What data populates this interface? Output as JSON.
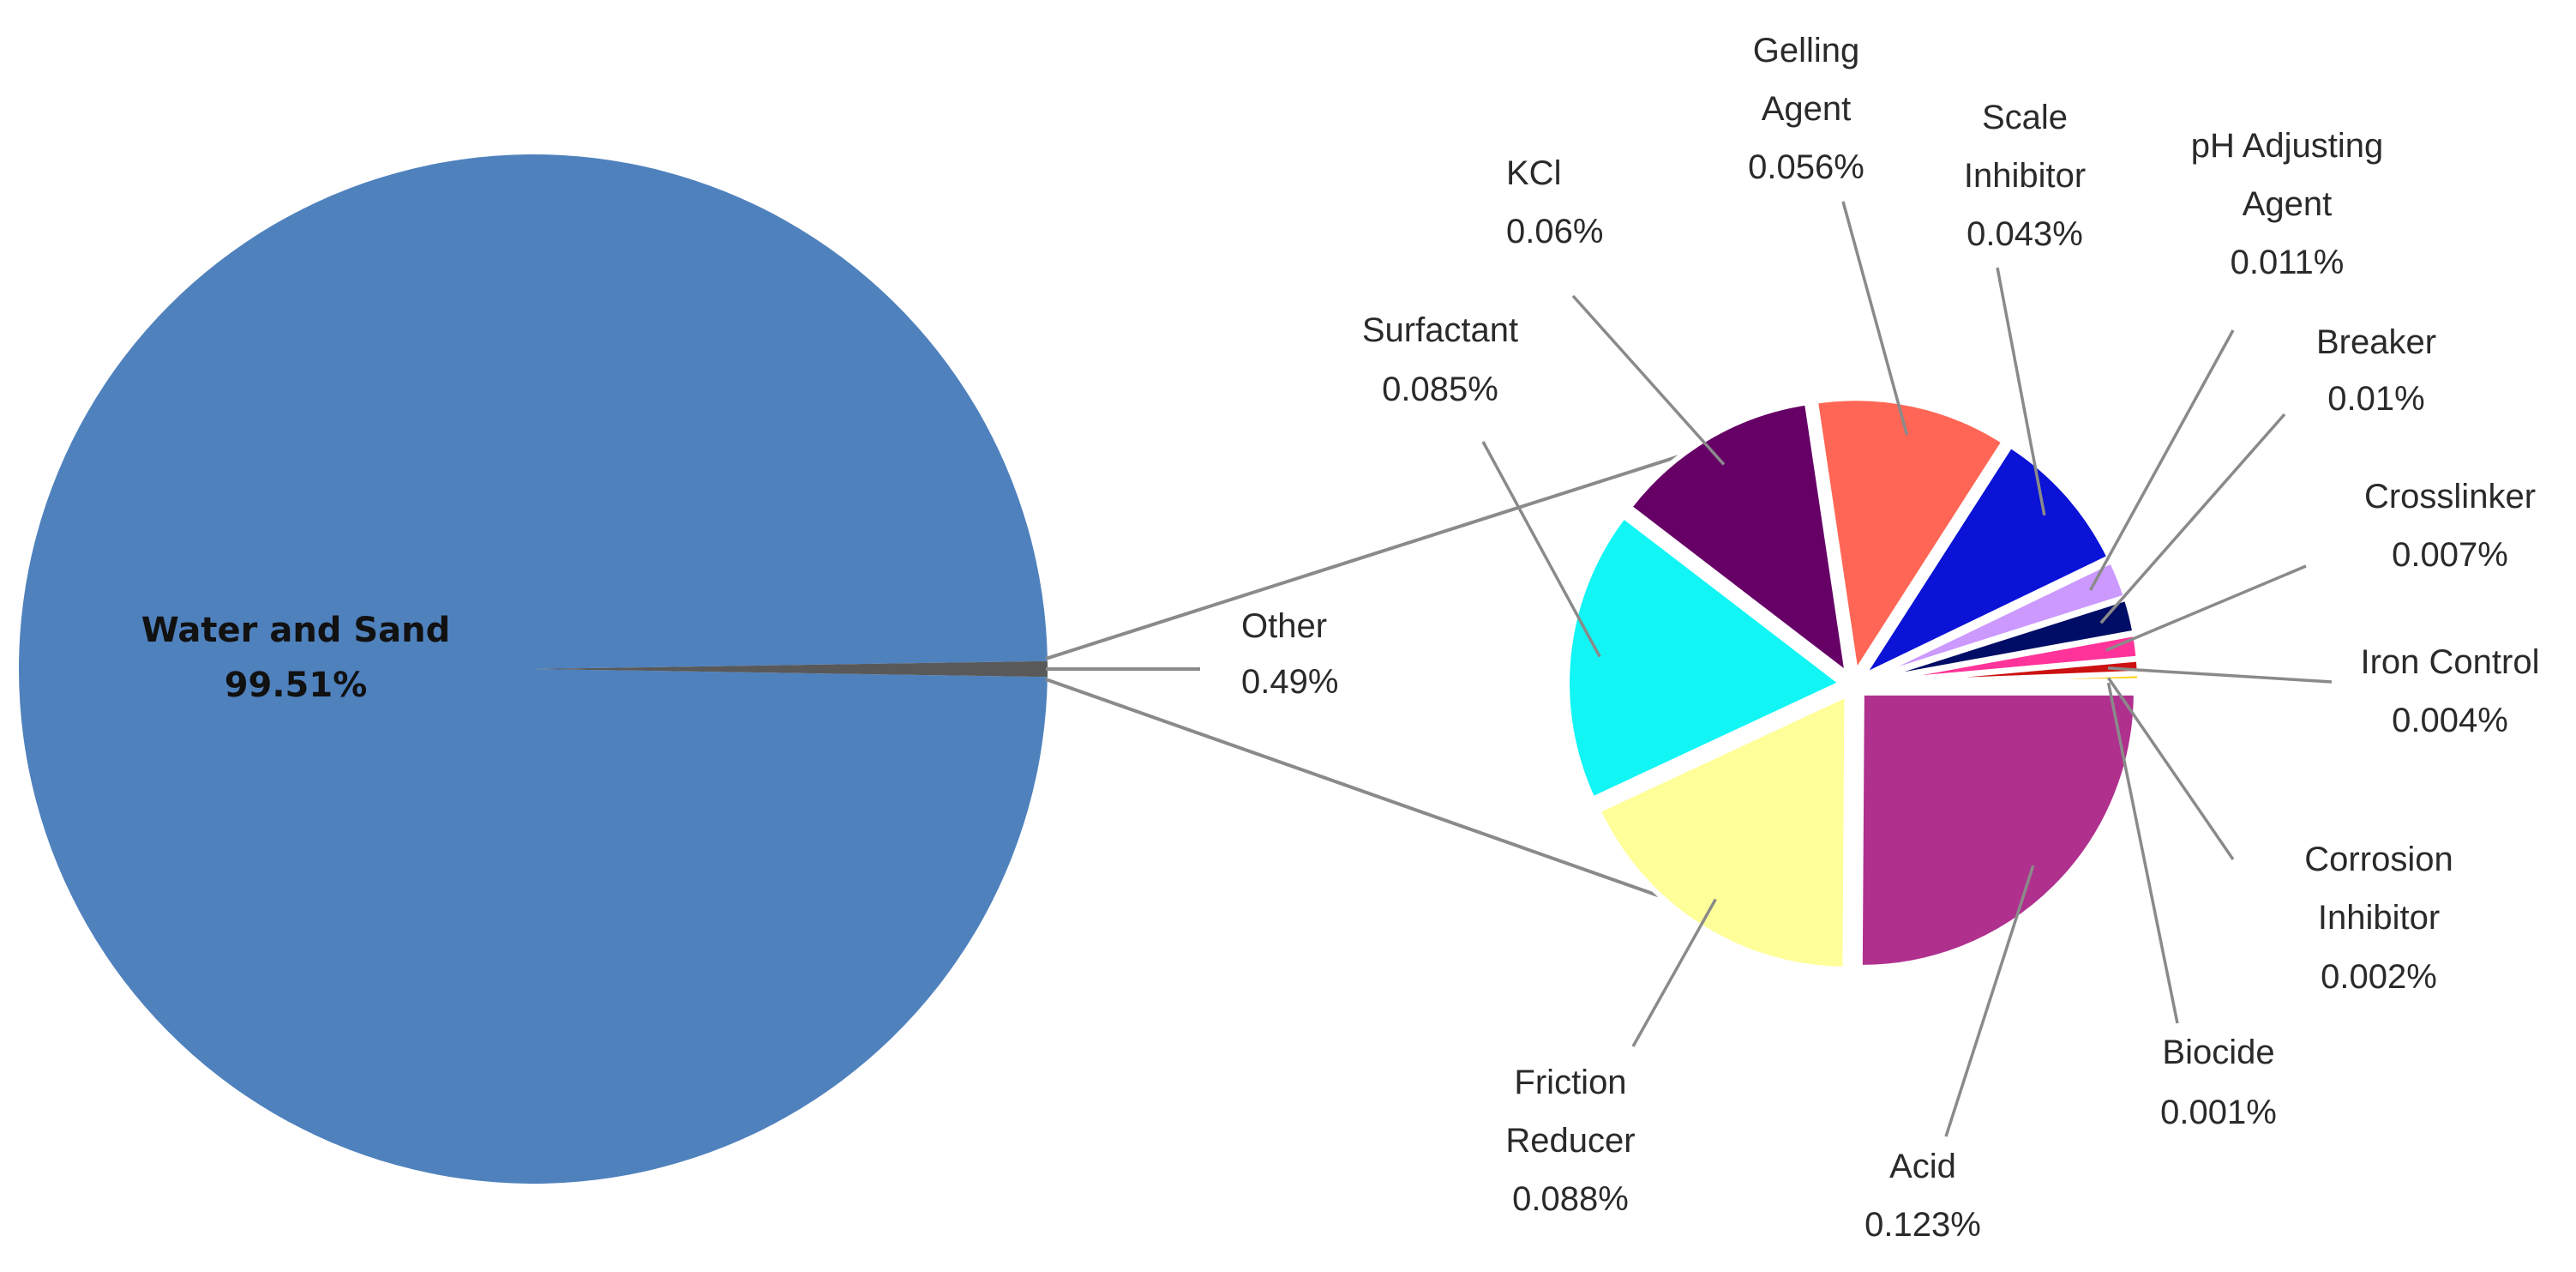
{
  "chart_data": [
    {
      "type": "pie",
      "slices": [
        {
          "label": "Water and Sand",
          "value_text": "99.51%",
          "value": 99.51,
          "color": "#4f81bd"
        },
        {
          "label": "Other",
          "value_text": "0.49%",
          "value": 0.49,
          "color": "#595959"
        }
      ]
    },
    {
      "type": "pie",
      "slices": [
        {
          "label": "Acid",
          "value_text": "0.123%",
          "value": 0.123,
          "color": "#b0308e"
        },
        {
          "label": "Friction Reducer",
          "value_text": "0.088%",
          "value": 0.088,
          "color": "#ffff99"
        },
        {
          "label": "Surfactant",
          "value_text": "0.085%",
          "value": 0.085,
          "color": "#11f5f5"
        },
        {
          "label": "KCl",
          "value_text": "0.06%",
          "value": 0.06,
          "color": "#660066"
        },
        {
          "label": "Gelling Agent",
          "value_text": "0.056%",
          "value": 0.056,
          "color": "#ff6655"
        },
        {
          "label": "Scale Inhibitor",
          "value_text": "0.043%",
          "value": 0.043,
          "color": "#0a13d6"
        },
        {
          "label": "pH Adjusting Agent",
          "value_text": "0.011%",
          "value": 0.011,
          "color": "#cc99ff"
        },
        {
          "label": "Breaker",
          "value_text": "0.01%",
          "value": 0.01,
          "color": "#000d66"
        },
        {
          "label": "Crosslinker",
          "value_text": "0.007%",
          "value": 0.007,
          "color": "#ff3399"
        },
        {
          "label": "Iron Control",
          "value_text": "0.004%",
          "value": 0.004,
          "color": "#cc1111"
        },
        {
          "label": "Corrosion Inhibitor",
          "value_text": "0.002%",
          "value": 0.002,
          "color": "#ffcc00"
        },
        {
          "label": "Biocide",
          "value_text": "0.001%",
          "value": 0.001,
          "color": "#4d3300"
        }
      ]
    }
  ]
}
